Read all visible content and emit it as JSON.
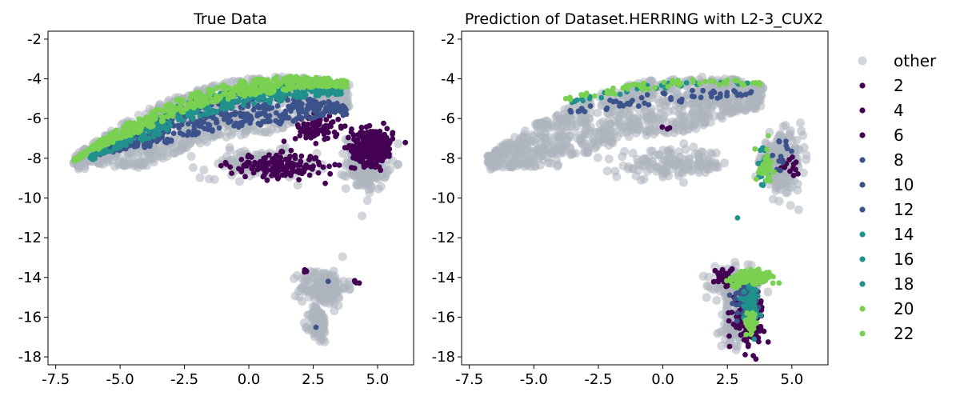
{
  "chart_data": [
    {
      "type": "scatter",
      "title": "True Data",
      "xlim": [
        -7.8,
        6.4
      ],
      "ylim": [
        -18.4,
        -1.6
      ],
      "x_ticks": [
        "-7.5",
        "-5.0",
        "-2.5",
        "0.0",
        "2.5",
        "5.0"
      ],
      "x_tick_values": [
        -7.5,
        -5.0,
        -2.5,
        0.0,
        2.5,
        5.0
      ],
      "y_ticks": [
        "-2",
        "-4",
        "-6",
        "-8",
        "-10",
        "-12",
        "-14",
        "-16",
        "-18"
      ],
      "y_tick_values": [
        -2,
        -4,
        -6,
        -8,
        -10,
        -12,
        -14,
        -16,
        -18
      ],
      "clusters": [
        {
          "series": "other",
          "shape": "arch",
          "x": [
            -6.8,
            3.9
          ],
          "y_top": [
            -7.9,
            -2.6,
            -4.3
          ],
          "thickness": 2.8,
          "n": 900
        },
        {
          "series": "other",
          "shape": "blob",
          "center": [
            4.6,
            -8.2
          ],
          "spread": [
            0.8,
            1.4
          ],
          "n": 220
        },
        {
          "series": "other",
          "shape": "blob",
          "center": [
            0.4,
            -8.3
          ],
          "spread": [
            2.2,
            0.7
          ],
          "n": 140
        },
        {
          "series": "other",
          "shape": "blob",
          "center": [
            2.9,
            -14.5
          ],
          "spread": [
            0.9,
            0.9
          ],
          "n": 160
        },
        {
          "series": "other",
          "shape": "blob",
          "center": [
            2.7,
            -16.4
          ],
          "spread": [
            0.35,
            0.9
          ],
          "n": 90
        },
        {
          "series": "2",
          "shape": "blob",
          "center": [
            4.8,
            -7.4
          ],
          "spread": [
            0.8,
            0.9
          ],
          "n": 260
        },
        {
          "series": "2",
          "shape": "blob",
          "center": [
            1.1,
            -8.4
          ],
          "spread": [
            1.8,
            0.6
          ],
          "n": 180
        },
        {
          "series": "2",
          "shape": "blob",
          "center": [
            2.7,
            -6.5
          ],
          "spread": [
            0.9,
            0.7
          ],
          "n": 80
        },
        {
          "series": "2",
          "shape": "blob",
          "center": [
            2.2,
            -13.7
          ],
          "spread": [
            0.12,
            0.12
          ],
          "n": 4
        },
        {
          "series": "2",
          "shape": "blob",
          "center": [
            4.2,
            -14.2
          ],
          "spread": [
            0.12,
            0.1
          ],
          "n": 4
        },
        {
          "series": "10",
          "shape": "arch",
          "x": [
            -5.8,
            3.8
          ],
          "y_top": [
            -7.5,
            -3.9,
            -5.3
          ],
          "thickness": 1.4,
          "n": 420
        },
        {
          "series": "10",
          "shape": "blob",
          "center": [
            3.1,
            -14.2
          ],
          "spread": [
            0.05,
            0.05
          ],
          "n": 1
        },
        {
          "series": "10",
          "shape": "blob",
          "center": [
            2.6,
            -16.5
          ],
          "spread": [
            0.05,
            0.05
          ],
          "n": 1
        },
        {
          "series": "16",
          "shape": "arch",
          "x": [
            -6.2,
            3.6
          ],
          "y_top": [
            -7.9,
            -3.3,
            -4.4
          ],
          "thickness": 1.0,
          "n": 380
        },
        {
          "series": "20",
          "shape": "arch",
          "x": [
            -6.8,
            3.8
          ],
          "y_top": [
            -8.0,
            -2.9,
            -4.1
          ],
          "thickness": 0.8,
          "n": 520
        }
      ]
    },
    {
      "type": "scatter",
      "title": "Prediction of Dataset.HERRING with L2-3_CUX2",
      "xlim": [
        -7.8,
        6.4
      ],
      "ylim": [
        -18.4,
        -1.6
      ],
      "x_ticks": [
        "-7.5",
        "-5.0",
        "-2.5",
        "0.0",
        "2.5",
        "5.0"
      ],
      "x_tick_values": [
        -7.5,
        -5.0,
        -2.5,
        0.0,
        2.5,
        5.0
      ],
      "y_ticks": [
        "-2",
        "-4",
        "-6",
        "-8",
        "-10",
        "-12",
        "-14",
        "-16",
        "-18"
      ],
      "y_tick_values": [
        -2,
        -4,
        -6,
        -8,
        -10,
        -12,
        -14,
        -16,
        -18
      ],
      "clusters": [
        {
          "series": "other",
          "shape": "arch",
          "x": [
            -6.8,
            3.9
          ],
          "y_top": [
            -7.9,
            -2.6,
            -4.3
          ],
          "thickness": 2.8,
          "n": 900
        },
        {
          "series": "other",
          "shape": "blob",
          "center": [
            4.6,
            -8.2
          ],
          "spread": [
            0.8,
            1.4
          ],
          "n": 220
        },
        {
          "series": "other",
          "shape": "blob",
          "center": [
            0.4,
            -8.3
          ],
          "spread": [
            2.2,
            0.7
          ],
          "n": 140
        },
        {
          "series": "other",
          "shape": "blob",
          "center": [
            2.9,
            -14.5
          ],
          "spread": [
            0.9,
            0.9
          ],
          "n": 160
        },
        {
          "series": "other",
          "shape": "blob",
          "center": [
            2.7,
            -16.4
          ],
          "spread": [
            0.35,
            0.9
          ],
          "n": 90
        },
        {
          "series": "2",
          "shape": "blob",
          "center": [
            3.3,
            -16.0
          ],
          "spread": [
            0.6,
            1.2
          ],
          "n": 160
        },
        {
          "series": "2",
          "shape": "blob",
          "center": [
            2.4,
            -14.0
          ],
          "spread": [
            0.4,
            0.5
          ],
          "n": 40
        },
        {
          "series": "2",
          "shape": "blob",
          "center": [
            5.0,
            -8.3
          ],
          "spread": [
            0.4,
            0.5
          ],
          "n": 14
        },
        {
          "series": "2",
          "shape": "blob",
          "center": [
            0.3,
            -6.5
          ],
          "spread": [
            0.3,
            0.15
          ],
          "n": 3
        },
        {
          "series": "10",
          "shape": "blob",
          "center": [
            3.2,
            -15.0
          ],
          "spread": [
            0.5,
            0.9
          ],
          "n": 70
        },
        {
          "series": "10",
          "shape": "arch",
          "x": [
            -3.8,
            3.5
          ],
          "y_top": [
            -5.6,
            -4.3,
            -4.6
          ],
          "thickness": 0.6,
          "n": 55
        },
        {
          "series": "10",
          "shape": "blob",
          "center": [
            4.6,
            -7.8
          ],
          "spread": [
            0.4,
            0.7
          ],
          "n": 14
        },
        {
          "series": "16",
          "shape": "blob",
          "center": [
            3.4,
            -15.3
          ],
          "spread": [
            0.3,
            1.0
          ],
          "n": 70
        },
        {
          "series": "16",
          "shape": "blob",
          "center": [
            3.9,
            -8.5
          ],
          "spread": [
            0.25,
            1.0
          ],
          "n": 26
        },
        {
          "series": "16",
          "shape": "arch",
          "x": [
            -3.8,
            3.5
          ],
          "y_top": [
            -5.2,
            -3.8,
            -4.2
          ],
          "thickness": 0.3,
          "n": 30
        },
        {
          "series": "16",
          "shape": "blob",
          "center": [
            2.9,
            -11.0
          ],
          "spread": [
            0.02,
            0.02
          ],
          "n": 1
        },
        {
          "series": "20",
          "shape": "blob",
          "center": [
            3.4,
            -14.0
          ],
          "spread": [
            0.8,
            0.4
          ],
          "n": 120
        },
        {
          "series": "20",
          "shape": "blob",
          "center": [
            3.4,
            -16.3
          ],
          "spread": [
            0.2,
            0.5
          ],
          "n": 40
        },
        {
          "series": "20",
          "shape": "arch",
          "x": [
            -3.8,
            3.9
          ],
          "y_top": [
            -5.0,
            -3.6,
            -4.2
          ],
          "thickness": 0.35,
          "n": 60
        },
        {
          "series": "20",
          "shape": "blob",
          "center": [
            4.0,
            -8.5
          ],
          "spread": [
            0.3,
            1.0
          ],
          "n": 40
        }
      ]
    }
  ],
  "legend": {
    "placement": "right",
    "entries": [
      {
        "label": "other",
        "color": "#adb5bd"
      },
      {
        "label": "2",
        "color": "#440154"
      },
      {
        "label": "4",
        "color": "#440154"
      },
      {
        "label": "6",
        "color": "#440154"
      },
      {
        "label": "8",
        "color": "#3b528b"
      },
      {
        "label": "10",
        "color": "#3b528b"
      },
      {
        "label": "12",
        "color": "#3b528b"
      },
      {
        "label": "14",
        "color": "#21918c"
      },
      {
        "label": "16",
        "color": "#21918c"
      },
      {
        "label": "18",
        "color": "#21918c"
      },
      {
        "label": "20",
        "color": "#7ad151"
      },
      {
        "label": "22",
        "color": "#7ad151"
      }
    ]
  },
  "colors": {
    "other": "#adb5bd",
    "2": "#440154",
    "10": "#3b528b",
    "16": "#21918c",
    "20": "#7ad151"
  }
}
